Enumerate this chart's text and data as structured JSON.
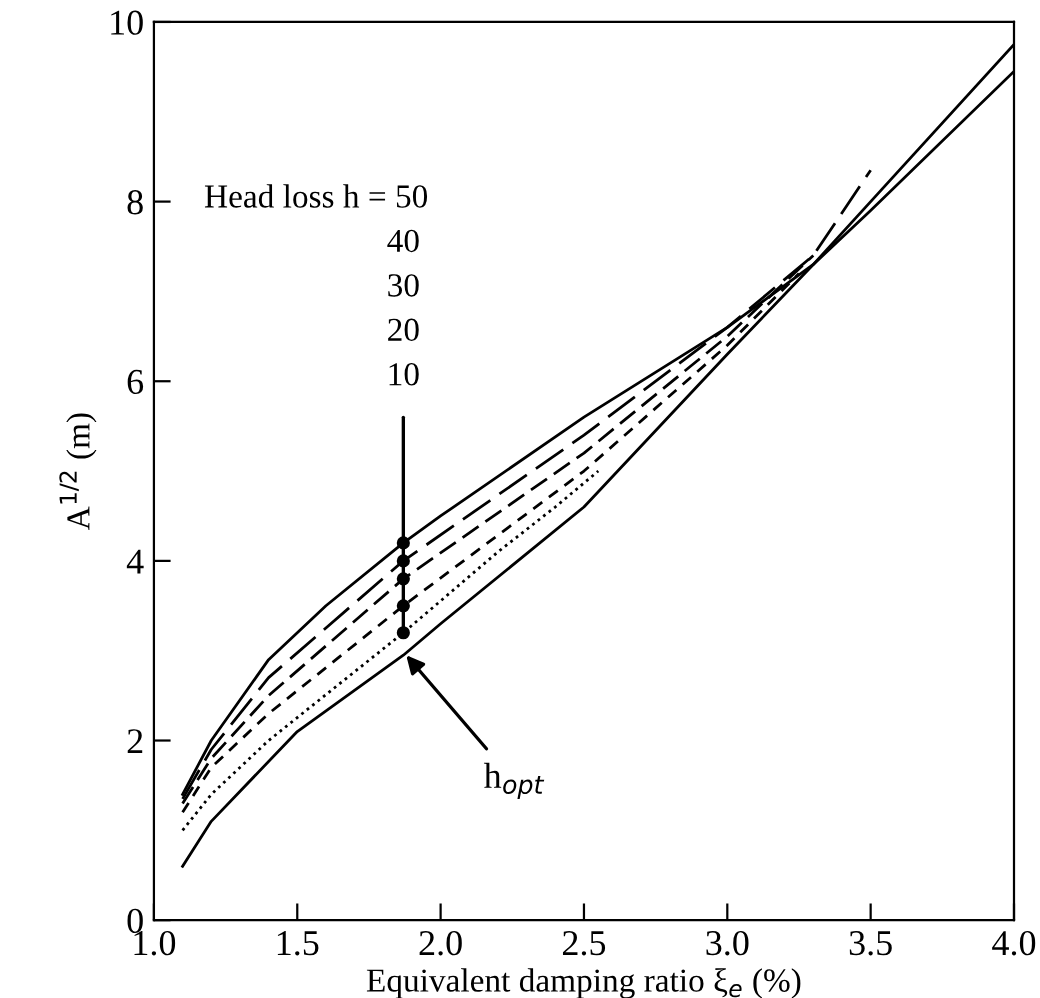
{
  "chart_data": {
    "type": "line",
    "xlabel": "Equivalent damping ratio ξ$_{e}$ (%)",
    "ylabel": "A$^{1/2}$ (m)",
    "xlim": [
      1.0,
      4.0
    ],
    "ylim": [
      0,
      10
    ],
    "xticks": [
      {
        "value": 1.0,
        "label": "1.0"
      },
      {
        "value": 1.5,
        "label": "1.5"
      },
      {
        "value": 2.0,
        "label": "2.0"
      },
      {
        "value": 2.5,
        "label": "2.5"
      },
      {
        "value": 3.0,
        "label": "3.0"
      },
      {
        "value": 3.5,
        "label": "3.5"
      },
      {
        "value": 4.0,
        "label": "4.0"
      }
    ],
    "yticks": [
      0,
      2,
      4,
      6,
      8,
      10
    ],
    "grid": false,
    "legend": false,
    "marker": "none",
    "series": [
      {
        "color": "#000000",
        "line_style": "solid",
        "x": [
          1.1,
          1.2,
          1.4,
          1.6,
          1.87,
          2.0,
          2.5,
          3.0,
          3.3,
          3.5,
          4.0
        ],
        "values": [
          1.4,
          2.0,
          2.9,
          3.5,
          4.2,
          4.5,
          5.6,
          6.6,
          7.3,
          7.9,
          9.45
        ]
      },
      {
        "color": "#000000",
        "line_style": "longdash",
        "x": [
          1.1,
          1.2,
          1.4,
          1.87,
          2.5,
          3.0,
          3.3,
          3.5
        ],
        "values": [
          1.35,
          1.9,
          2.7,
          4.0,
          5.4,
          6.6,
          7.4,
          8.35
        ]
      },
      {
        "color": "#000000",
        "line_style": "dashed",
        "x": [
          1.1,
          1.2,
          1.4,
          1.87,
          2.5,
          3.0,
          3.3
        ],
        "values": [
          1.3,
          1.8,
          2.5,
          3.8,
          5.2,
          6.5,
          7.4
        ]
      },
      {
        "color": "#000000",
        "line_style": "shortdash",
        "x": [
          1.1,
          1.2,
          1.4,
          1.87,
          2.5,
          3.0,
          3.25
        ],
        "values": [
          1.2,
          1.7,
          2.3,
          3.5,
          5.0,
          6.4,
          7.2
        ]
      },
      {
        "color": "#000000",
        "line_style": "dotted",
        "x": [
          1.1,
          1.2,
          1.4,
          1.87,
          2.2,
          2.4,
          2.55
        ],
        "values": [
          1.0,
          1.4,
          2.0,
          3.2,
          4.1,
          4.6,
          5.0
        ]
      },
      {
        "color": "#000000",
        "line_style": "solid",
        "x": [
          1.1,
          1.2,
          1.5,
          1.87,
          2.0,
          2.5,
          3.0,
          3.3,
          3.5,
          4.0
        ],
        "values": [
          0.6,
          1.1,
          2.1,
          2.95,
          3.3,
          4.6,
          6.3,
          7.3,
          8.0,
          9.75
        ]
      },
      {
        "type": "scatter",
        "color": "#000000",
        "marker": "circle",
        "x": [
          1.87,
          1.87,
          1.87,
          1.87,
          1.87
        ],
        "values": [
          4.2,
          4.0,
          3.8,
          3.5,
          3.2
        ]
      }
    ],
    "annotations": [
      "Head loss h = 50",
      "40",
      "30",
      "20",
      {
        "text": "10",
        "x": 1.87,
        "y": 3.2
      },
      {
        "text": "h$_{opt}$",
        "x": 1.88,
        "y": 2.95
      }
    ]
  }
}
